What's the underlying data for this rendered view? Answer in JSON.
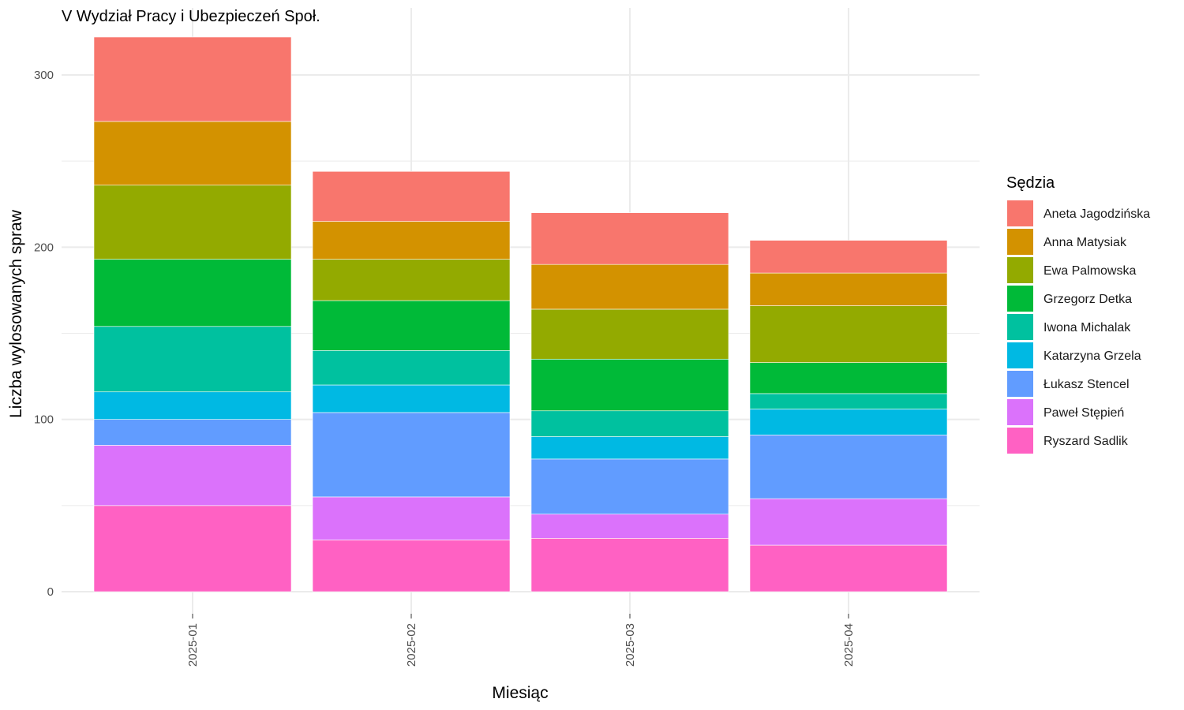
{
  "chart_data": {
    "type": "bar",
    "stacked": true,
    "title": "V Wydział Pracy i Ubezpieczeń Społ.",
    "xlabel": "Miesiąc",
    "ylabel": "Liczba wylosowanych spraw",
    "ylim": [
      0,
      330
    ],
    "yticks": [
      0,
      100,
      200,
      300
    ],
    "grid": true,
    "legend_title": "Sędzia",
    "legend_position": "right",
    "categories": [
      "2025-01",
      "2025-02",
      "2025-03",
      "2025-04"
    ],
    "series": [
      {
        "name": "Ryszard Sadlik",
        "color": "#FF61C3",
        "values": [
          50,
          30,
          31,
          27
        ]
      },
      {
        "name": "Paweł Stępień",
        "color": "#DB72FB",
        "values": [
          35,
          25,
          14,
          27
        ]
      },
      {
        "name": "Łukasz Stencel",
        "color": "#619CFF",
        "values": [
          15,
          49,
          32,
          37
        ]
      },
      {
        "name": "Katarzyna Grzela",
        "color": "#00B9E3",
        "values": [
          16,
          16,
          13,
          15
        ]
      },
      {
        "name": "Iwona Michalak",
        "color": "#00C19F",
        "values": [
          38,
          20,
          15,
          9
        ]
      },
      {
        "name": "Grzegorz Detka",
        "color": "#00BA38",
        "values": [
          39,
          29,
          30,
          18
        ]
      },
      {
        "name": "Ewa Palmowska",
        "color": "#93AA00",
        "values": [
          43,
          24,
          29,
          33
        ]
      },
      {
        "name": "Anna Matysiak",
        "color": "#D39200",
        "values": [
          37,
          22,
          26,
          19
        ]
      },
      {
        "name": "Aneta Jagodzińska",
        "color": "#F8766D",
        "values": [
          49,
          29,
          30,
          19
        ]
      }
    ],
    "legend_order": [
      "Aneta Jagodzińska",
      "Anna Matysiak",
      "Ewa Palmowska",
      "Grzegorz Detka",
      "Iwona Michalak",
      "Katarzyna Grzela",
      "Łukasz Stencel",
      "Paweł Stępień",
      "Ryszard Sadlik"
    ]
  }
}
